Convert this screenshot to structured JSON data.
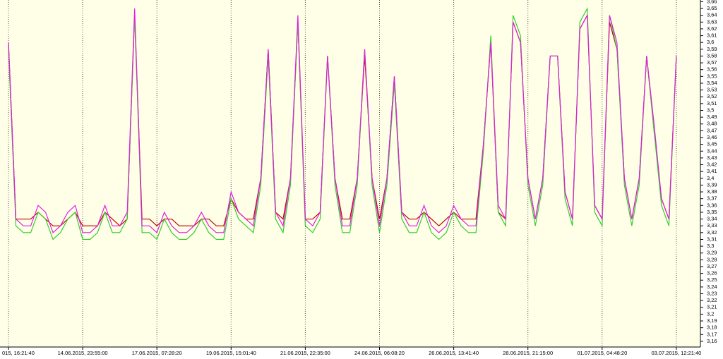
{
  "chart_data": {
    "type": "line",
    "categories": [
      "015, 16:21:40",
      null,
      null,
      null,
      null,
      null,
      null,
      null,
      null,
      null,
      "14.06.2015, 23:55:00",
      null,
      null,
      null,
      null,
      null,
      null,
      null,
      null,
      null,
      "17.06.2015, 07:28:20",
      null,
      null,
      null,
      null,
      null,
      null,
      null,
      null,
      null,
      "19.06.2015, 15:01:40",
      null,
      null,
      null,
      null,
      null,
      null,
      null,
      null,
      null,
      "21.06.2015, 22:35:00",
      null,
      null,
      null,
      null,
      null,
      null,
      null,
      null,
      null,
      "24.06.2015, 06:08:20",
      null,
      null,
      null,
      null,
      null,
      null,
      null,
      null,
      null,
      "26.06.2015, 13:41:40",
      null,
      null,
      null,
      null,
      null,
      null,
      null,
      null,
      null,
      "28.06.2015, 21:15:00",
      null,
      null,
      null,
      null,
      null,
      null,
      null,
      null,
      null,
      "01.07.2015, 04:48:20",
      null,
      null,
      null,
      null,
      null,
      null,
      null,
      null,
      null,
      "03.07.2015, 12:21:40"
    ],
    "series": [
      {
        "color": "#c00000",
        "values": [
          3.6,
          3.34,
          3.34,
          3.34,
          3.35,
          3.34,
          3.33,
          3.33,
          3.34,
          3.35,
          3.33,
          3.33,
          3.33,
          3.35,
          3.34,
          3.33,
          3.34,
          3.64,
          3.34,
          3.34,
          3.33,
          3.34,
          3.34,
          3.33,
          3.33,
          3.33,
          3.34,
          3.34,
          3.33,
          3.33,
          3.37,
          3.35,
          3.34,
          3.34,
          3.4,
          3.59,
          3.35,
          3.34,
          3.4,
          3.63,
          3.34,
          3.34,
          3.35,
          3.58,
          3.4,
          3.34,
          3.34,
          3.4,
          3.58,
          3.4,
          3.34,
          3.4,
          3.55,
          3.35,
          3.34,
          3.34,
          3.35,
          3.34,
          3.33,
          3.34,
          3.35,
          3.34,
          3.34,
          3.34,
          3.45,
          3.6,
          3.35,
          3.34,
          3.63,
          3.6,
          3.4,
          3.34,
          3.4,
          3.58,
          3.58,
          3.38,
          3.34,
          3.62,
          3.64,
          3.36,
          3.34,
          3.63,
          3.59,
          3.4,
          3.34,
          3.4,
          3.58,
          3.47,
          3.37,
          3.34,
          3.58
        ]
      },
      {
        "color": "#33cc33",
        "values": [
          3.59,
          3.33,
          3.32,
          3.32,
          3.35,
          3.34,
          3.31,
          3.32,
          3.34,
          3.35,
          3.31,
          3.31,
          3.32,
          3.35,
          3.32,
          3.32,
          3.34,
          3.64,
          3.32,
          3.32,
          3.31,
          3.34,
          3.32,
          3.31,
          3.31,
          3.32,
          3.34,
          3.32,
          3.31,
          3.31,
          3.37,
          3.34,
          3.33,
          3.32,
          3.39,
          3.58,
          3.34,
          3.32,
          3.39,
          3.63,
          3.33,
          3.32,
          3.34,
          3.58,
          3.39,
          3.32,
          3.32,
          3.39,
          3.59,
          3.39,
          3.32,
          3.39,
          3.54,
          3.34,
          3.32,
          3.32,
          3.35,
          3.32,
          3.31,
          3.32,
          3.35,
          3.33,
          3.32,
          3.32,
          3.44,
          3.61,
          3.35,
          3.33,
          3.64,
          3.61,
          3.39,
          3.33,
          3.39,
          3.58,
          3.58,
          3.37,
          3.33,
          3.63,
          3.65,
          3.35,
          3.33,
          3.64,
          3.59,
          3.39,
          3.33,
          3.39,
          3.58,
          3.47,
          3.36,
          3.33,
          3.58
        ]
      },
      {
        "color": "#e020e0",
        "values": [
          3.6,
          3.34,
          3.33,
          3.33,
          3.36,
          3.35,
          3.32,
          3.33,
          3.35,
          3.36,
          3.32,
          3.32,
          3.33,
          3.36,
          3.33,
          3.33,
          3.35,
          3.65,
          3.33,
          3.33,
          3.32,
          3.35,
          3.33,
          3.32,
          3.32,
          3.33,
          3.35,
          3.33,
          3.32,
          3.32,
          3.38,
          3.35,
          3.34,
          3.33,
          3.4,
          3.59,
          3.35,
          3.33,
          3.4,
          3.64,
          3.34,
          3.33,
          3.35,
          3.58,
          3.4,
          3.33,
          3.33,
          3.4,
          3.59,
          3.4,
          3.33,
          3.4,
          3.55,
          3.35,
          3.33,
          3.33,
          3.36,
          3.33,
          3.32,
          3.33,
          3.36,
          3.34,
          3.33,
          3.33,
          3.45,
          3.6,
          3.36,
          3.34,
          3.63,
          3.6,
          3.4,
          3.34,
          3.4,
          3.58,
          3.58,
          3.38,
          3.34,
          3.62,
          3.64,
          3.36,
          3.34,
          3.64,
          3.6,
          3.4,
          3.34,
          3.4,
          3.58,
          3.48,
          3.37,
          3.34,
          3.58
        ]
      }
    ],
    "ylim": [
      3.1516,
      3.6625
    ],
    "yticks": [
      {
        "value": 3.16,
        "label": "3,16"
      },
      {
        "value": 3.17,
        "label": "3,17"
      },
      {
        "value": 3.18,
        "label": "3,18"
      },
      {
        "value": 3.19,
        "label": "3,19"
      },
      {
        "value": 3.2,
        "label": "3,2"
      },
      {
        "value": 3.21,
        "label": "3,21"
      },
      {
        "value": 3.22,
        "label": "3,22"
      },
      {
        "value": 3.23,
        "label": "3,23"
      },
      {
        "value": 3.24,
        "label": "3,24"
      },
      {
        "value": 3.25,
        "label": "3,25"
      },
      {
        "value": 3.26,
        "label": "3,26"
      },
      {
        "value": 3.27,
        "label": "3,27"
      },
      {
        "value": 3.28,
        "label": "3,28"
      },
      {
        "value": 3.29,
        "label": "3,29"
      },
      {
        "value": 3.3,
        "label": "3,3"
      },
      {
        "value": 3.31,
        "label": "3,31"
      },
      {
        "value": 3.32,
        "label": "3,32"
      },
      {
        "value": 3.33,
        "label": "3,33"
      },
      {
        "value": 3.34,
        "label": "3,34"
      },
      {
        "value": 3.35,
        "label": "3,35"
      },
      {
        "value": 3.36,
        "label": "3,36"
      },
      {
        "value": 3.37,
        "label": "3,37"
      },
      {
        "value": 3.38,
        "label": "3,38"
      },
      {
        "value": 3.39,
        "label": "3,39"
      },
      {
        "value": 3.4,
        "label": "3,4"
      },
      {
        "value": 3.41,
        "label": "3,41"
      },
      {
        "value": 3.42,
        "label": "3,42"
      },
      {
        "value": 3.43,
        "label": "3,43"
      },
      {
        "value": 3.44,
        "label": "3,44"
      },
      {
        "value": 3.45,
        "label": "3,45"
      },
      {
        "value": 3.46,
        "label": "3,46"
      },
      {
        "value": 3.47,
        "label": "3,47"
      },
      {
        "value": 3.48,
        "label": "3,48"
      },
      {
        "value": 3.49,
        "label": "3,49"
      },
      {
        "value": 3.5,
        "label": "3,5"
      },
      {
        "value": 3.51,
        "label": "3,51"
      },
      {
        "value": 3.52,
        "label": "3,52"
      },
      {
        "value": 3.53,
        "label": "3,53"
      },
      {
        "value": 3.54,
        "label": "3,54"
      },
      {
        "value": 3.55,
        "label": "3,55"
      },
      {
        "value": 3.56,
        "label": "3,56"
      },
      {
        "value": 3.57,
        "label": "3,57"
      },
      {
        "value": 3.58,
        "label": "3,58"
      },
      {
        "value": 3.59,
        "label": "3,59"
      },
      {
        "value": 3.6,
        "label": "3,6"
      },
      {
        "value": 3.61,
        "label": "3,61"
      },
      {
        "value": 3.62,
        "label": "3,62"
      },
      {
        "value": 3.63,
        "label": "3,63"
      },
      {
        "value": 3.64,
        "label": "3,64"
      },
      {
        "value": 3.65,
        "label": "3,65"
      },
      {
        "value": 3.66,
        "label": "3,66"
      }
    ],
    "grid": true,
    "background": "#ffffe8"
  }
}
